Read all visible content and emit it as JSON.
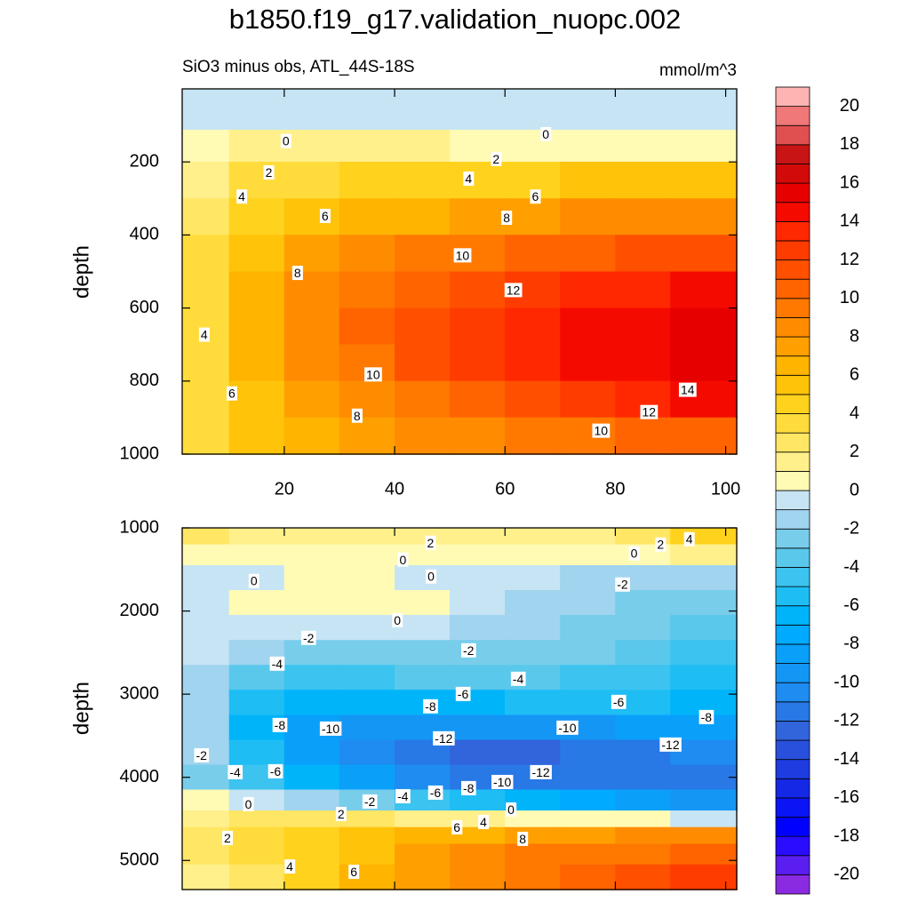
{
  "title": "b1850.f19_g17.validation_nuopc.002",
  "chart_data": [
    {
      "type": "contour",
      "subtitle_left": "SiO3 minus obs, ATL_44S-18S",
      "subtitle_right": "mmol/m^3",
      "y_label": "depth",
      "xlim": [
        1.5,
        102
      ],
      "ylim": [
        1000,
        0
      ],
      "xticks": [
        20,
        40,
        60,
        80,
        100
      ],
      "yticks": [
        200,
        400,
        600,
        800,
        1000
      ],
      "x": [
        5,
        15,
        25,
        35,
        45,
        55,
        65,
        75,
        85,
        95
      ],
      "y": [
        25,
        75,
        150,
        250,
        350,
        450,
        550,
        650,
        750,
        850,
        950
      ],
      "z": [
        [
          -1,
          -1,
          -1,
          -1,
          -1,
          -1,
          -1,
          -1,
          -1,
          -1
        ],
        [
          -0.5,
          -0.5,
          -0.5,
          -0.5,
          -0.5,
          -0.5,
          -0.5,
          -0.5,
          -0.5,
          -0.5
        ],
        [
          0.5,
          1,
          1,
          1,
          1,
          0.8,
          0.6,
          0.5,
          0.5,
          0.5
        ],
        [
          1.5,
          3,
          3.5,
          4,
          4,
          4,
          4.5,
          5,
          5,
          5
        ],
        [
          2.5,
          4.5,
          5.5,
          6,
          6.5,
          7,
          7.5,
          8,
          8,
          8
        ],
        [
          3,
          5.5,
          7,
          8,
          9,
          9.5,
          10,
          10.5,
          11,
          11
        ],
        [
          3.5,
          6,
          8,
          9.5,
          10.5,
          11.5,
          12.5,
          13,
          13.5,
          14
        ],
        [
          3.5,
          6,
          8,
          10,
          11,
          12,
          13,
          14,
          14.5,
          15
        ],
        [
          3.5,
          6,
          8,
          9.5,
          11,
          12,
          13,
          14,
          14.5,
          15.5
        ],
        [
          3.5,
          5.5,
          7.5,
          8.5,
          9.5,
          10.5,
          11.5,
          12.5,
          13,
          14
        ],
        [
          3,
          5,
          6.5,
          7,
          8,
          8.5,
          9,
          9.5,
          10,
          10.5
        ]
      ],
      "contour_labels": [
        {
          "value": 0,
          "x": 20.3,
          "y": 146
        },
        {
          "value": 0,
          "x": 67.4,
          "y": 127
        },
        {
          "value": 2,
          "x": 17.2,
          "y": 232
        },
        {
          "value": 2,
          "x": 58.4,
          "y": 195
        },
        {
          "value": 4,
          "x": 12.3,
          "y": 298
        },
        {
          "value": 4,
          "x": 53.4,
          "y": 249
        },
        {
          "value": 6,
          "x": 65.5,
          "y": 298
        },
        {
          "value": 6,
          "x": 27.4,
          "y": 351
        },
        {
          "value": 8,
          "x": 60.3,
          "y": 356
        },
        {
          "value": 10,
          "x": 52.3,
          "y": 459
        },
        {
          "value": 12,
          "x": 61.5,
          "y": 554
        },
        {
          "value": 8,
          "x": 22.4,
          "y": 507
        },
        {
          "value": 4,
          "x": 5.5,
          "y": 676
        },
        {
          "value": 10,
          "x": 36.1,
          "y": 785
        },
        {
          "value": 14,
          "x": 93.1,
          "y": 827
        },
        {
          "value": 6,
          "x": 10.5,
          "y": 837
        },
        {
          "value": 12,
          "x": 86.1,
          "y": 888
        },
        {
          "value": 8,
          "x": 33.2,
          "y": 898
        },
        {
          "value": 10,
          "x": 77.4,
          "y": 939
        }
      ]
    },
    {
      "type": "contour",
      "y_label": "depth",
      "xlim": [
        1.5,
        102
      ],
      "ylim": [
        5350,
        1000
      ],
      "yticks": [
        1000,
        2000,
        3000,
        4000,
        5000
      ],
      "x": [
        5,
        15,
        25,
        35,
        45,
        55,
        65,
        75,
        85,
        95
      ],
      "y": [
        1100,
        1300,
        1600,
        1900,
        2200,
        2500,
        2800,
        3100,
        3400,
        3700,
        4000,
        4300,
        4500,
        4700,
        4900,
        5200
      ],
      "z": [
        [
          2,
          1,
          1,
          1,
          1,
          1,
          1,
          1,
          2,
          4
        ],
        [
          0.5,
          0.3,
          0.5,
          0.5,
          0.3,
          0.2,
          0,
          0,
          0.5,
          1
        ],
        [
          -0.5,
          -0.2,
          0.2,
          0.3,
          -0.3,
          -0.8,
          -1,
          -1.5,
          -1.5,
          -1.5
        ],
        [
          -0.5,
          0.3,
          0.5,
          0.5,
          0.2,
          -0.8,
          -1.5,
          -2,
          -2.5,
          -3
        ],
        [
          -0.8,
          -0.8,
          -0.8,
          -1,
          -1,
          -1.3,
          -1.8,
          -2.5,
          -3,
          -3.5
        ],
        [
          -1,
          -2,
          -2.5,
          -2.5,
          -2.3,
          -2.2,
          -2.5,
          -3,
          -3.5,
          -4.5
        ],
        [
          -1.5,
          -3.5,
          -4.5,
          -4.5,
          -4,
          -4,
          -4,
          -4.5,
          -5,
          -5.5
        ],
        [
          -2,
          -5.5,
          -7,
          -7,
          -7,
          -6.5,
          -6,
          -6,
          -6,
          -6.5
        ],
        [
          -2,
          -7,
          -9,
          -10,
          -10,
          -10,
          -10,
          -9.5,
          -9,
          -8.5
        ],
        [
          -2,
          -6,
          -9,
          -11,
          -12,
          -12.5,
          -12.5,
          -12,
          -12,
          -11
        ],
        [
          -3,
          -5,
          -7,
          -9,
          -11,
          -12,
          -12,
          -12,
          -12,
          -12
        ],
        [
          0,
          -1,
          -2,
          -3,
          -5,
          -6,
          -7,
          -8,
          -9,
          -10
        ],
        [
          1,
          2,
          2,
          2,
          1.5,
          1,
          0.5,
          0.5,
          0,
          -0.5
        ],
        [
          2,
          3,
          4,
          5,
          6,
          6.5,
          7,
          7.5,
          8,
          8.5
        ],
        [
          2,
          3,
          4,
          5.5,
          7,
          8,
          9,
          9,
          9.5,
          10
        ],
        [
          1.5,
          2.5,
          4,
          6,
          7.5,
          8.5,
          9.5,
          10,
          11,
          12
        ]
      ],
      "contour_labels": [
        {
          "value": 2,
          "x": 46.5,
          "y": 1193
        },
        {
          "value": 4,
          "x": 93.4,
          "y": 1150
        },
        {
          "value": 2,
          "x": 88.2,
          "y": 1214
        },
        {
          "value": 0,
          "x": 83.4,
          "y": 1321
        },
        {
          "value": 0,
          "x": 41.5,
          "y": 1396
        },
        {
          "value": 0,
          "x": 46.6,
          "y": 1599
        },
        {
          "value": 0,
          "x": 14.5,
          "y": 1652
        },
        {
          "value": -2,
          "x": 81.3,
          "y": 1695
        },
        {
          "value": 0,
          "x": 40.5,
          "y": 2123
        },
        {
          "value": -2,
          "x": 24.4,
          "y": 2337
        },
        {
          "value": -2,
          "x": 53.4,
          "y": 2487
        },
        {
          "value": -4,
          "x": 18.7,
          "y": 2647
        },
        {
          "value": -4,
          "x": 62.4,
          "y": 2829
        },
        {
          "value": -6,
          "x": 52.4,
          "y": 3011
        },
        {
          "value": -8,
          "x": 46.5,
          "y": 3160
        },
        {
          "value": -6,
          "x": 80.6,
          "y": 3107
        },
        {
          "value": -8,
          "x": 96.5,
          "y": 3289
        },
        {
          "value": -8,
          "x": 19.2,
          "y": 3385
        },
        {
          "value": -10,
          "x": 28.4,
          "y": 3428
        },
        {
          "value": -10,
          "x": 71.3,
          "y": 3417
        },
        {
          "value": -12,
          "x": 48.9,
          "y": 3545
        },
        {
          "value": -12,
          "x": 90.0,
          "y": 3620
        },
        {
          "value": -2,
          "x": 5.0,
          "y": 3749
        },
        {
          "value": -4,
          "x": 11.1,
          "y": 3952
        },
        {
          "value": -6,
          "x": 18.4,
          "y": 3941
        },
        {
          "value": -12,
          "x": 66.5,
          "y": 3952
        },
        {
          "value": -10,
          "x": 59.5,
          "y": 4070
        },
        {
          "value": -8,
          "x": 53.4,
          "y": 4144
        },
        {
          "value": -6,
          "x": 47.4,
          "y": 4198
        },
        {
          "value": -4,
          "x": 41.5,
          "y": 4241
        },
        {
          "value": -2,
          "x": 35.5,
          "y": 4305
        },
        {
          "value": 0,
          "x": 13.5,
          "y": 4337
        },
        {
          "value": 0,
          "x": 61.1,
          "y": 4401
        },
        {
          "value": 2,
          "x": 30.3,
          "y": 4455
        },
        {
          "value": 4,
          "x": 56.1,
          "y": 4551
        },
        {
          "value": 6,
          "x": 51.3,
          "y": 4615
        },
        {
          "value": 8,
          "x": 63.2,
          "y": 4754
        },
        {
          "value": 2,
          "x": 9.7,
          "y": 4743
        },
        {
          "value": 4,
          "x": 21,
          "y": 5086
        },
        {
          "value": 6,
          "x": 32.6,
          "y": 5150
        }
      ]
    }
  ],
  "colorbar": {
    "levels": [
      -20,
      -19,
      -18,
      -17,
      -16,
      -15,
      -14,
      -13,
      -12,
      -11,
      -10,
      -9,
      -8,
      -7,
      -6,
      -5,
      -4,
      -3,
      -2,
      -1,
      0,
      1,
      2,
      3,
      4,
      5,
      6,
      7,
      8,
      9,
      10,
      11,
      12,
      13,
      14,
      15,
      16,
      17,
      18,
      19,
      20
    ],
    "colors": [
      "#8a2be2",
      "#5a1ef0",
      "#2a0cff",
      "#0000ff",
      "#0a14f5",
      "#1428e6",
      "#1e3ce0",
      "#2850dc",
      "#3264dc",
      "#2878e6",
      "#1e8cf0",
      "#1496f5",
      "#0aa0fa",
      "#00aaff",
      "#00b4fa",
      "#1ebef5",
      "#3cc3f0",
      "#5ac8eb",
      "#78cdeb",
      "#a0d4ef",
      "#c6e4f4",
      "#fffab4",
      "#fff08c",
      "#ffe664",
      "#ffdc3c",
      "#ffd21e",
      "#ffc30a",
      "#ffb400",
      "#ffa000",
      "#ff8c00",
      "#ff7800",
      "#ff6400",
      "#ff5000",
      "#ff3c00",
      "#ff2800",
      "#f50a00",
      "#e60000",
      "#d20a0a",
      "#c81414",
      "#e05050",
      "#f07878",
      "#ffb4b4"
    ],
    "ticks": [
      20,
      18,
      16,
      14,
      12,
      10,
      8,
      6,
      4,
      2,
      0,
      -2,
      -4,
      -6,
      -8,
      -10,
      -12,
      -14,
      -16,
      -18,
      -20
    ]
  }
}
